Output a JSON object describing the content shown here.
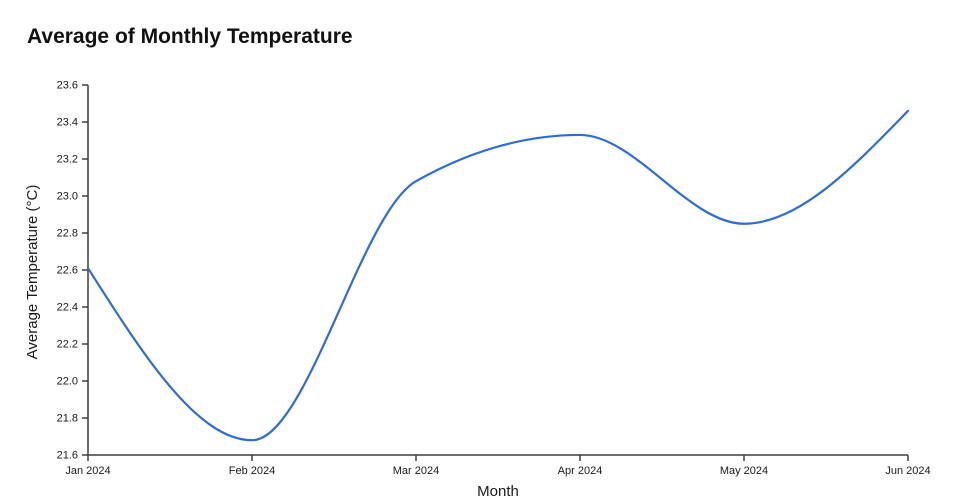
{
  "chart_data": {
    "type": "line",
    "title": "Average of Monthly Temperature",
    "xlabel": "Month",
    "ylabel": "Average Temperature (°C)",
    "categories": [
      "Jan 2024",
      "Feb 2024",
      "Mar 2024",
      "Apr 2024",
      "May 2024",
      "Jun 2024"
    ],
    "series": [
      {
        "name": "Average of Monthly Temperature",
        "values": [
          22.61,
          21.68,
          23.08,
          23.33,
          22.85,
          23.46
        ]
      }
    ],
    "ylim": [
      21.6,
      23.6
    ],
    "ytick_step": 0.2,
    "ytick_labels": [
      "21.6",
      "21.8",
      "22.0",
      "22.2",
      "22.4",
      "22.6",
      "22.8",
      "23.0",
      "23.2",
      "23.4",
      "23.6"
    ],
    "grid": false,
    "legend": "none",
    "curve": "monotone",
    "colors": {
      "line": "#2e6bdb",
      "axis": "#3f3f3f",
      "text": "#1a1a1a",
      "background": "#ffffff"
    }
  }
}
